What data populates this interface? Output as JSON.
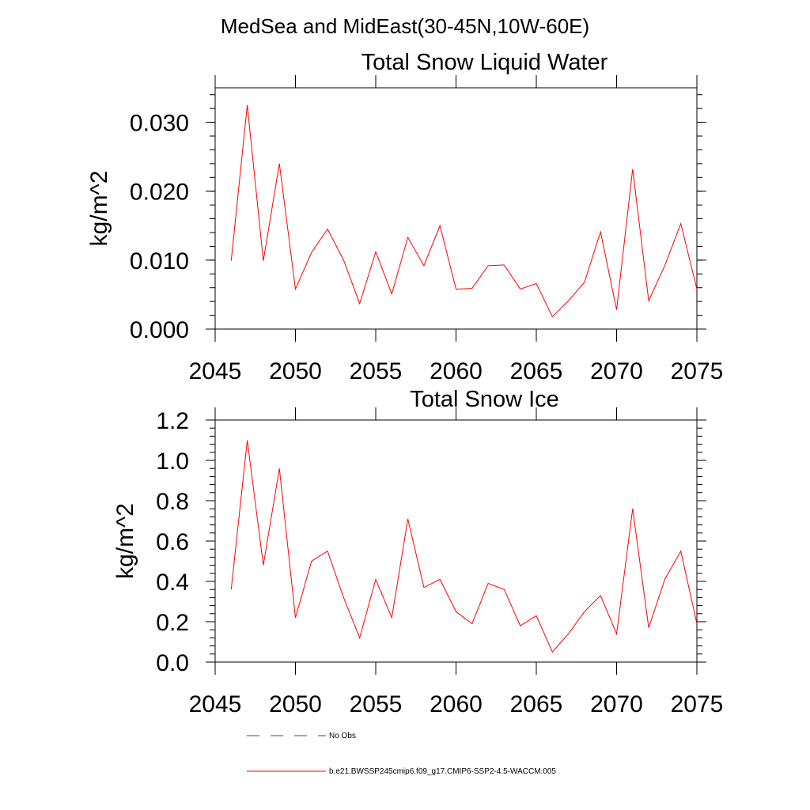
{
  "figure_title": "MedSea and MidEast(30-45N,10W-60E)",
  "line_color": "#ff0000",
  "legend_dash_color": "#3a4a7a",
  "legend": [
    {
      "label": "No Obs",
      "style": "dashed"
    },
    {
      "label": "b.e21.BWSSP245cmip6.f09_g17.CMIP6-SSP2-4.5-WACCM.005",
      "style": "solid"
    }
  ],
  "chart_data": [
    {
      "type": "line",
      "title": "Total Snow Liquid Water",
      "xlabel": "",
      "ylabel": "kg/m^2",
      "xlim": [
        2045,
        2075
      ],
      "ylim": [
        0,
        0.035
      ],
      "xticks": [
        2045,
        2050,
        2055,
        2060,
        2065,
        2070,
        2075
      ],
      "xtick_labels": [
        "2045",
        "2050",
        "2055",
        "2060",
        "2065",
        "2070",
        "2075"
      ],
      "yticks": [
        0,
        0.01,
        0.02,
        0.03
      ],
      "ytick_labels": [
        "0.000",
        "0.010",
        "0.020",
        "0.030"
      ],
      "x": [
        2046,
        2047,
        2048,
        2049,
        2050,
        2051,
        2052,
        2053,
        2054,
        2055,
        2056,
        2057,
        2058,
        2059,
        2060,
        2061,
        2062,
        2063,
        2064,
        2065,
        2066,
        2067,
        2068,
        2069,
        2070,
        2071,
        2072,
        2073,
        2074,
        2075
      ],
      "series": [
        {
          "name": "b.e21.BWSSP245cmip6.f09_g17.CMIP6-SSP2-4.5-WACCM.005",
          "values": [
            0.0099,
            0.0325,
            0.0099,
            0.024,
            0.0058,
            0.0111,
            0.0145,
            0.01,
            0.0037,
            0.0112,
            0.0051,
            0.0133,
            0.0092,
            0.015,
            0.0058,
            0.0059,
            0.0092,
            0.0093,
            0.0058,
            0.0066,
            0.0018,
            0.0041,
            0.0068,
            0.0141,
            0.0028,
            0.0232,
            0.0041,
            0.0092,
            0.0153,
            0.0058
          ]
        }
      ]
    },
    {
      "type": "line",
      "title": "Total Snow Ice",
      "xlabel": "",
      "ylabel": "kg/m^2",
      "xlim": [
        2045,
        2075
      ],
      "ylim": [
        0,
        1.2
      ],
      "xticks": [
        2045,
        2050,
        2055,
        2060,
        2065,
        2070,
        2075
      ],
      "xtick_labels": [
        "2045",
        "2050",
        "2055",
        "2060",
        "2065",
        "2070",
        "2075"
      ],
      "yticks": [
        0,
        0.2,
        0.4,
        0.6,
        0.8,
        1.0,
        1.2
      ],
      "ytick_labels": [
        "0.0",
        "0.2",
        "0.4",
        "0.6",
        "0.8",
        "1.0",
        "1.2"
      ],
      "x": [
        2046,
        2047,
        2048,
        2049,
        2050,
        2051,
        2052,
        2053,
        2054,
        2055,
        2056,
        2057,
        2058,
        2059,
        2060,
        2061,
        2062,
        2063,
        2064,
        2065,
        2066,
        2067,
        2068,
        2069,
        2070,
        2071,
        2072,
        2073,
        2074,
        2075
      ],
      "series": [
        {
          "name": "b.e21.BWSSP245cmip6.f09_g17.CMIP6-SSP2-4.5-WACCM.005",
          "values": [
            0.36,
            1.1,
            0.48,
            0.96,
            0.22,
            0.5,
            0.55,
            0.32,
            0.12,
            0.41,
            0.22,
            0.71,
            0.37,
            0.41,
            0.25,
            0.19,
            0.39,
            0.36,
            0.18,
            0.23,
            0.05,
            0.14,
            0.25,
            0.33,
            0.14,
            0.76,
            0.17,
            0.41,
            0.55,
            0.19
          ]
        }
      ]
    }
  ]
}
